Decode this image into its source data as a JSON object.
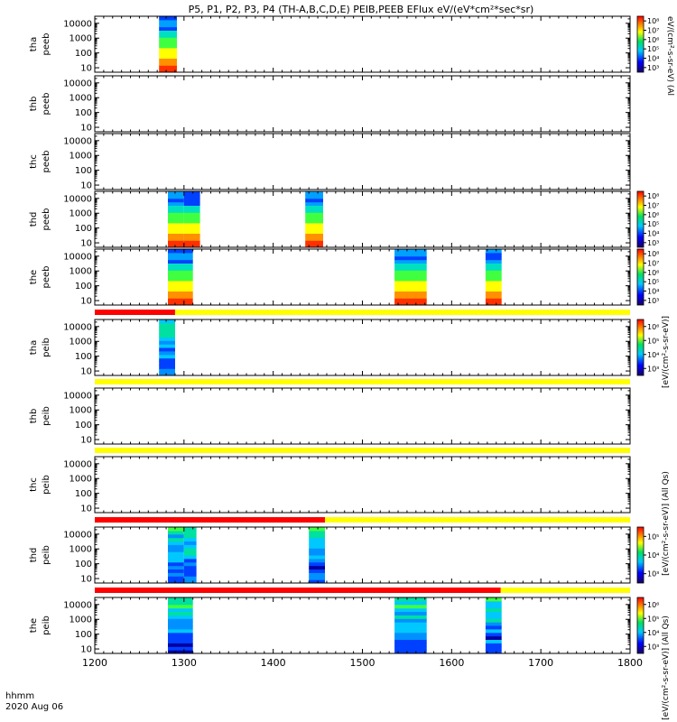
{
  "title": "P5, P1, P2, P3, P4 (TH-A,B,C,D,E) PEIB,PEEB EFlux eV/(eV*cm²*sec*sr)",
  "footer": {
    "time_label": "hhmm",
    "date_label": "2020 Aug 06"
  },
  "colorbar_labels": {
    "units_full": "[eV/(cm²-s-sr-eV)] (All Qs)",
    "units_short": "[eV/(cm²-s-sr-eV)]",
    "units_partial": "eV/(cm²-s-sr-eV) (Al"
  },
  "chart_data": {
    "type": "heatmap",
    "x_range": [
      1200,
      1800
    ],
    "x_ticks": [
      "1200",
      "1300",
      "1400",
      "1500",
      "1600",
      "1700",
      "1800"
    ],
    "y_ticks": [
      "10",
      "100",
      "1000",
      "10000"
    ],
    "y_scale": "log",
    "y_range_eV": [
      5,
      30000
    ],
    "colorbar_scale": "log",
    "panels": [
      {
        "probe": "tha",
        "species": "peeb",
        "colorbar": [
          "10³",
          "10⁴",
          "10⁵",
          "10⁶",
          "10⁷",
          "10⁸"
        ],
        "blocks": [
          [
            1272,
            1292
          ]
        ]
      },
      {
        "probe": "thb",
        "species": "peeb",
        "colorbar": [],
        "blocks": []
      },
      {
        "probe": "thc",
        "species": "peeb",
        "colorbar": [],
        "blocks": []
      },
      {
        "probe": "thd",
        "species": "peeb",
        "colorbar": [
          "10³",
          "10⁴",
          "10⁵",
          "10⁶",
          "10⁷",
          "10⁸"
        ],
        "blocks": [
          [
            1282,
            1300
          ],
          [
            1300,
            1318
          ],
          [
            1436,
            1456
          ]
        ]
      },
      {
        "probe": "the",
        "species": "peeb",
        "colorbar": [
          "10³",
          "10⁴",
          "10⁵",
          "10⁶",
          "10⁷",
          "10⁸"
        ],
        "blocks": [
          [
            1282,
            1310
          ],
          [
            1536,
            1572
          ],
          [
            1638,
            1656
          ]
        ]
      },
      {
        "probe": "tha",
        "species": "peib",
        "colorbar": [
          "10³",
          "10⁴",
          "10⁵",
          "10⁶"
        ],
        "blocks": [
          [
            1272,
            1290
          ]
        ]
      },
      {
        "probe": "thb",
        "species": "peib",
        "colorbar": [],
        "blocks": []
      },
      {
        "probe": "thc",
        "species": "peib",
        "colorbar": [],
        "blocks": []
      },
      {
        "probe": "thd",
        "species": "peib",
        "colorbar": [
          "10³",
          "10⁴",
          "10⁵"
        ],
        "blocks": [
          [
            1282,
            1300
          ],
          [
            1300,
            1314
          ],
          [
            1440,
            1458
          ]
        ]
      },
      {
        "probe": "the",
        "species": "peib",
        "colorbar": [
          "10³",
          "10⁴",
          "10⁵",
          "10⁶"
        ],
        "blocks": [
          [
            1282,
            1310
          ],
          [
            1536,
            1572
          ],
          [
            1638,
            1656
          ]
        ]
      }
    ],
    "mode_bars": [
      {
        "after_panel": 4,
        "segments": [
          [
            1200,
            1290,
            "#ff0000"
          ],
          [
            1290,
            1800,
            "#ffff00"
          ]
        ]
      },
      {
        "after_panel": 5,
        "segments": [
          [
            1200,
            1800,
            "#ffff00"
          ]
        ]
      },
      {
        "after_panel": 6,
        "segments": [
          [
            1200,
            1800,
            "#ffff00"
          ]
        ]
      },
      {
        "after_panel": 7,
        "segments": [
          [
            1200,
            1458,
            "#ff0000"
          ],
          [
            1458,
            1800,
            "#ffff00"
          ]
        ]
      },
      {
        "after_panel": 8,
        "segments": [
          [
            1200,
            1655,
            "#ff0000"
          ],
          [
            1655,
            1800,
            "#ffff00"
          ]
        ]
      }
    ]
  }
}
